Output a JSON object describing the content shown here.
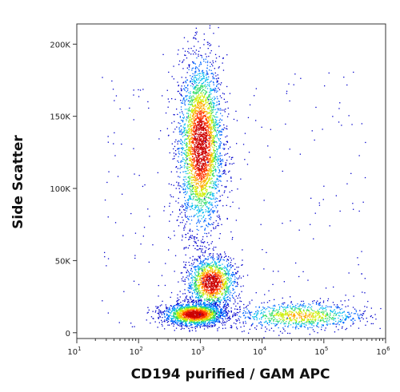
{
  "chart_data": {
    "type": "scatter",
    "title": "",
    "xlabel": "CD194 purified / GAM APC",
    "ylabel": "Side Scatter",
    "x_scale": "log",
    "xlim": [
      10,
      1000000
    ],
    "ylim": [
      -4000,
      214000
    ],
    "grid": false,
    "legend": "none",
    "colormap": [
      "#0000cc",
      "#0066ff",
      "#00bbee",
      "#33dd66",
      "#ccee00",
      "#ffaa00",
      "#ff3300",
      "#cc0000"
    ],
    "x_ticks": [
      {
        "value": 10,
        "base": "10",
        "exp": "1"
      },
      {
        "value": 100,
        "base": "10",
        "exp": "2"
      },
      {
        "value": 1000,
        "base": "10",
        "exp": "3"
      },
      {
        "value": 10000,
        "base": "10",
        "exp": "4"
      },
      {
        "value": 100000,
        "base": "10",
        "exp": "5"
      },
      {
        "value": 1000000,
        "base": "10",
        "exp": "6"
      }
    ],
    "y_ticks": [
      {
        "value": 0,
        "label": "0"
      },
      {
        "value": 50000,
        "label": "50K"
      },
      {
        "value": 100000,
        "label": "100K"
      },
      {
        "value": 150000,
        "label": "150K"
      },
      {
        "value": 200000,
        "label": "200K"
      }
    ],
    "populations": [
      {
        "x_center": 1000,
        "y_center": 130000,
        "x_spread_decades": 0.18,
        "y_spread": 30000,
        "count": 3200
      },
      {
        "x_center": 1500,
        "y_center": 35000,
        "x_spread_decades": 0.2,
        "y_spread": 9000,
        "count": 1400
      },
      {
        "x_center": 800,
        "y_center": 13000,
        "x_spread_decades": 0.25,
        "y_spread": 4000,
        "count": 1800
      },
      {
        "x_center": 40000,
        "y_center": 12000,
        "x_spread_decades": 0.55,
        "y_spread": 5000,
        "count": 900
      }
    ]
  }
}
